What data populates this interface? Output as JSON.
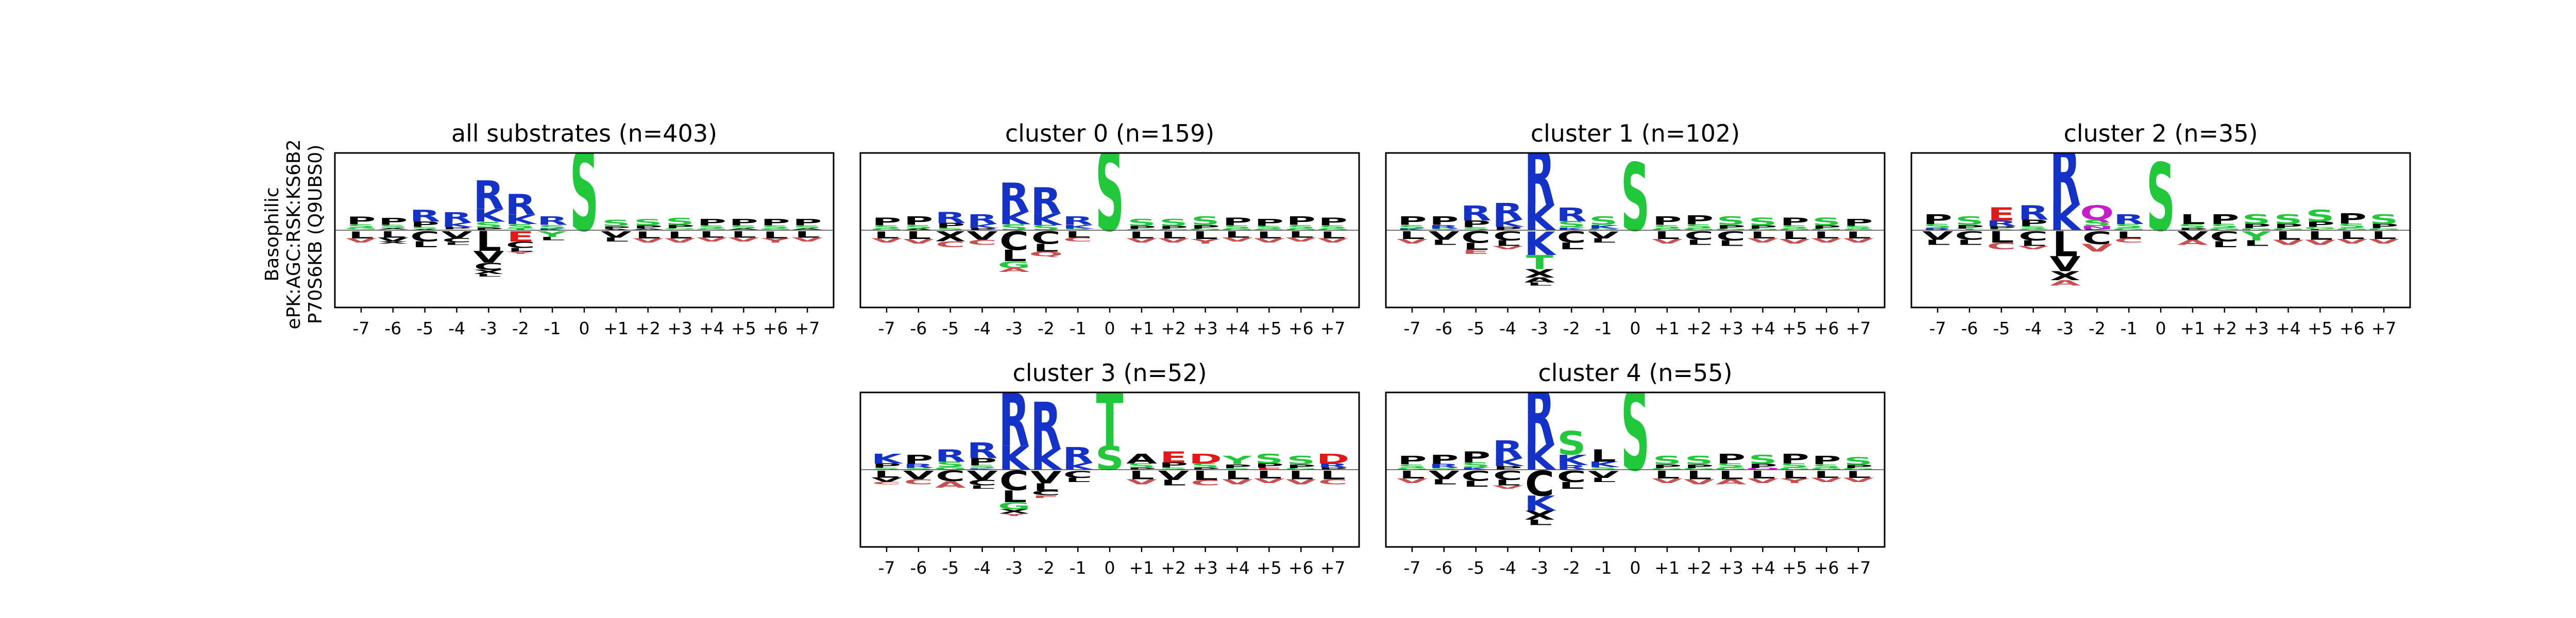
{
  "figure": {
    "ylabel_lines": [
      "Basophilic",
      "ePK:AGC:RSK:KS6B2",
      "P70S6KB (Q9UBS0)"
    ]
  },
  "colors": {
    "R": "#1432c8",
    "K": "#1432c8",
    "H": "#7b7bff",
    "S": "#22c83c",
    "T": "#22c83c",
    "G": "#22c83c",
    "Y": "#22c83c",
    "D": "#e01a1a",
    "E": "#e01a1a",
    "N": "#c81cc8",
    "Q": "#c81cc8",
    "P": "#000000",
    "A": "#000000",
    "V": "#000000",
    "L": "#000000",
    "I": "#000000",
    "M": "#000000",
    "F": "#000000",
    "W": "#000000",
    "C": "#000000",
    "X": "#000000",
    "neg": "#c85050"
  },
  "chart_data": [
    {
      "type": "sequence-logo",
      "title": "all substrates (n=403)",
      "positions": [
        "-7",
        "-6",
        "-5",
        "-4",
        "-3",
        "-2",
        "-1",
        "0",
        "+1",
        "+2",
        "+3",
        "+4",
        "+5",
        "+6",
        "+7"
      ],
      "above": [
        [
          "P",
          "S",
          "G",
          "A"
        ],
        [
          "P",
          "S",
          "A",
          "G"
        ],
        [
          "R",
          "P",
          "S",
          "A"
        ],
        [
          "R",
          "K",
          "P",
          "S"
        ],
        [
          "R",
          "K",
          "S",
          "P"
        ],
        [
          "R",
          "K",
          "S",
          "T"
        ],
        [
          "R",
          "S",
          "K"
        ],
        [
          "S"
        ],
        [
          "S",
          "P",
          "A"
        ],
        [
          "S",
          "P",
          "A",
          "G"
        ],
        [
          "S",
          "P",
          "G",
          "A"
        ],
        [
          "P",
          "S",
          "G",
          "A"
        ],
        [
          "P",
          "S",
          "A",
          "G"
        ],
        [
          "P",
          "S",
          "G",
          "A"
        ],
        [
          "P",
          "S",
          "A",
          "G"
        ]
      ],
      "above_h": [
        0.6,
        0.55,
        0.9,
        0.8,
        2.2,
        1.6,
        0.6,
        3.6,
        0.45,
        0.5,
        0.55,
        0.5,
        0.5,
        0.5,
        0.5
      ],
      "below": [
        [
          "L",
          "V"
        ],
        [
          "L",
          "V",
          "X"
        ],
        [
          "C",
          "L"
        ],
        [
          "V",
          "C",
          "L"
        ],
        [
          "L",
          "V",
          "C",
          "X",
          "L"
        ],
        [
          "E",
          "C",
          "L",
          "Y"
        ],
        [
          "Y",
          "L"
        ],
        [],
        [
          "V",
          "L"
        ],
        [
          "L",
          "V"
        ],
        [
          "L",
          "V"
        ],
        [
          "L",
          "V"
        ],
        [
          "L",
          "V"
        ],
        [
          "L",
          "Y"
        ],
        [
          "L",
          "V"
        ]
      ],
      "below_h": [
        0.5,
        0.55,
        0.7,
        0.6,
        2.0,
        1.0,
        0.4,
        0,
        0.45,
        0.5,
        0.5,
        0.45,
        0.45,
        0.5,
        0.45
      ]
    },
    {
      "type": "sequence-logo",
      "title": "cluster 0 (n=159)",
      "positions": [
        "-7",
        "-6",
        "-5",
        "-4",
        "-3",
        "-2",
        "-1",
        "0",
        "+1",
        "+2",
        "+3",
        "+4",
        "+5",
        "+6",
        "+7"
      ],
      "above": [
        [
          "P",
          "S",
          "G"
        ],
        [
          "P",
          "S",
          "A"
        ],
        [
          "R",
          "P",
          "S"
        ],
        [
          "R",
          "K",
          "P"
        ],
        [
          "R",
          "K",
          "S"
        ],
        [
          "R",
          "K",
          "S"
        ],
        [
          "R",
          "K",
          "S"
        ],
        [
          "S"
        ],
        [
          "S",
          "P",
          "G"
        ],
        [
          "S",
          "P",
          "G"
        ],
        [
          "S",
          "P",
          "G"
        ],
        [
          "P",
          "S",
          "G"
        ],
        [
          "P",
          "S",
          "G"
        ],
        [
          "P",
          "S",
          "G"
        ],
        [
          "P",
          "S",
          "G"
        ]
      ],
      "above_h": [
        0.55,
        0.6,
        0.8,
        0.7,
        2.1,
        1.9,
        0.6,
        3.6,
        0.5,
        0.5,
        0.6,
        0.55,
        0.5,
        0.6,
        0.55
      ],
      "below": [
        [
          "L",
          "V"
        ],
        [
          "L",
          "V"
        ],
        [
          "X",
          "C"
        ],
        [
          "V",
          "C"
        ],
        [
          "C",
          "L",
          "G",
          "A"
        ],
        [
          "C",
          "L",
          "Q"
        ],
        [
          "L",
          "C"
        ],
        [],
        [
          "L",
          "V"
        ],
        [
          "L",
          "V"
        ],
        [
          "L",
          "Y"
        ],
        [
          "L",
          "V"
        ],
        [
          "L",
          "V"
        ],
        [
          "L",
          "V"
        ],
        [
          "L",
          "V"
        ]
      ],
      "below_h": [
        0.5,
        0.55,
        0.7,
        0.6,
        1.8,
        1.1,
        0.45,
        0,
        0.5,
        0.5,
        0.55,
        0.45,
        0.5,
        0.45,
        0.5
      ]
    },
    {
      "type": "sequence-logo",
      "title": "cluster 1 (n=102)",
      "positions": [
        "-7",
        "-6",
        "-5",
        "-4",
        "-3",
        "-2",
        "-1",
        "0",
        "+1",
        "+2",
        "+3",
        "+4",
        "+5",
        "+6",
        "+7"
      ],
      "above": [
        [
          "P",
          "S",
          "K"
        ],
        [
          "P",
          "R",
          "S"
        ],
        [
          "R",
          "P",
          "S"
        ],
        [
          "R",
          "K",
          "P"
        ],
        [
          "R",
          "K"
        ],
        [
          "R",
          "S",
          "K"
        ],
        [
          "S",
          "K",
          "G"
        ],
        [
          "S"
        ],
        [
          "P",
          "S",
          "G"
        ],
        [
          "P",
          "S",
          "G"
        ],
        [
          "S",
          "P",
          "G"
        ],
        [
          "S",
          "P",
          "G"
        ],
        [
          "P",
          "S",
          "G"
        ],
        [
          "S",
          "P",
          "G"
        ],
        [
          "P",
          "S",
          "G"
        ]
      ],
      "above_h": [
        0.6,
        0.6,
        1.1,
        1.2,
        3.6,
        1.0,
        0.6,
        3.0,
        0.6,
        0.65,
        0.6,
        0.55,
        0.55,
        0.55,
        0.5
      ],
      "below": [
        [
          "L",
          "V"
        ],
        [
          "V",
          "L"
        ],
        [
          "C",
          "L",
          "E"
        ],
        [
          "C",
          "L",
          "V"
        ],
        [
          "K",
          "T",
          "X",
          "A",
          "L"
        ],
        [
          "C",
          "L"
        ],
        [
          "V",
          "L"
        ],
        [],
        [
          "L",
          "V"
        ],
        [
          "C",
          "L"
        ],
        [
          "C",
          "L"
        ],
        [
          "L",
          "V"
        ],
        [
          "L",
          "V"
        ],
        [
          "L",
          "V"
        ],
        [
          "L",
          "V"
        ]
      ],
      "below_h": [
        0.55,
        0.6,
        1.0,
        0.8,
        2.4,
        0.8,
        0.5,
        0,
        0.55,
        0.6,
        0.65,
        0.5,
        0.55,
        0.5,
        0.5
      ]
    },
    {
      "type": "sequence-logo",
      "title": "cluster 2 (n=35)",
      "positions": [
        "-7",
        "-6",
        "-5",
        "-4",
        "-3",
        "-2",
        "-1",
        "0",
        "+1",
        "+2",
        "+3",
        "+4",
        "+5",
        "+6",
        "+7"
      ],
      "above": [
        [
          "P",
          "S",
          "R"
        ],
        [
          "S",
          "P",
          "T"
        ],
        [
          "E",
          "R",
          "P",
          "S"
        ],
        [
          "R",
          "P",
          "S",
          "G"
        ],
        [
          "R",
          "K"
        ],
        [
          "Q",
          "S",
          "N",
          "K"
        ],
        [
          "R",
          "S",
          "G"
        ],
        [
          "S"
        ],
        [
          "L",
          "S",
          "P"
        ],
        [
          "P",
          "S",
          "G"
        ],
        [
          "S",
          "P",
          "G"
        ],
        [
          "S",
          "P",
          "G"
        ],
        [
          "S",
          "P",
          "G",
          "L"
        ],
        [
          "P",
          "S",
          "G"
        ],
        [
          "S",
          "P",
          "G"
        ]
      ],
      "above_h": [
        0.7,
        0.6,
        1.0,
        1.1,
        3.7,
        1.1,
        0.7,
        3.0,
        0.7,
        0.7,
        0.7,
        0.7,
        0.9,
        0.75,
        0.7
      ],
      "below": [
        [
          "V",
          "L"
        ],
        [
          "C",
          "L"
        ],
        [
          "L",
          "C"
        ],
        [
          "C",
          "L",
          "V"
        ],
        [
          "L",
          "V",
          "X",
          "A"
        ],
        [
          "C",
          "V"
        ],
        [
          "L",
          "C"
        ],
        [],
        [
          "V",
          "A"
        ],
        [
          "C",
          "L"
        ],
        [
          "Y",
          "L"
        ],
        [
          "L",
          "V"
        ],
        [
          "L",
          "V"
        ],
        [
          "L",
          "V"
        ],
        [
          "L",
          "V"
        ]
      ],
      "below_h": [
        0.6,
        0.6,
        0.8,
        0.8,
        2.4,
        0.9,
        0.5,
        0,
        0.6,
        0.7,
        0.65,
        0.6,
        0.6,
        0.55,
        0.55
      ]
    },
    {
      "type": "sequence-logo",
      "title": "cluster 3 (n=52)",
      "positions": [
        "-7",
        "-6",
        "-5",
        "-4",
        "-3",
        "-2",
        "-1",
        "0",
        "+1",
        "+2",
        "+3",
        "+4",
        "+5",
        "+6",
        "+7"
      ],
      "above": [
        [
          "K",
          "P",
          "S"
        ],
        [
          "P",
          "R",
          "S"
        ],
        [
          "R",
          "S",
          "G"
        ],
        [
          "R",
          "P",
          "S",
          "K"
        ],
        [
          "R",
          "K"
        ],
        [
          "R",
          "K"
        ],
        [
          "R",
          "K"
        ],
        [
          "T",
          "S"
        ],
        [
          "A",
          "S",
          "P"
        ],
        [
          "E",
          "P",
          "S"
        ],
        [
          "D",
          "S",
          "P"
        ],
        [
          "Y",
          "P",
          "S"
        ],
        [
          "S",
          "P",
          "E"
        ],
        [
          "S",
          "P",
          "G"
        ],
        [
          "D",
          "R",
          "P"
        ]
      ],
      "above_h": [
        0.7,
        0.65,
        0.9,
        1.2,
        3.4,
        3.0,
        1.0,
        3.4,
        0.7,
        0.8,
        0.7,
        0.6,
        0.7,
        0.6,
        0.7
      ],
      "below": [
        [
          "L",
          "V",
          "C"
        ],
        [
          "V",
          "C"
        ],
        [
          "C",
          "A"
        ],
        [
          "V",
          "C",
          "L"
        ],
        [
          "C",
          "L",
          "G",
          "X",
          "Y"
        ],
        [
          "V",
          "L",
          "C",
          "F"
        ],
        [
          "C",
          "L"
        ],
        [],
        [
          "L",
          "V"
        ],
        [
          "V",
          "L"
        ],
        [
          "L",
          "C"
        ],
        [
          "L",
          "V"
        ],
        [
          "L",
          "V"
        ],
        [
          "L",
          "V"
        ],
        [
          "L",
          "C"
        ]
      ],
      "below_h": [
        0.6,
        0.6,
        0.75,
        0.8,
        2.0,
        1.2,
        0.5,
        0,
        0.6,
        0.65,
        0.65,
        0.6,
        0.55,
        0.6,
        0.6
      ]
    },
    {
      "type": "sequence-logo",
      "title": "cluster 4 (n=55)",
      "positions": [
        "-7",
        "-6",
        "-5",
        "-4",
        "-3",
        "-2",
        "-1",
        "0",
        "+1",
        "+2",
        "+3",
        "+4",
        "+5",
        "+6",
        "+7"
      ],
      "above": [
        [
          "P",
          "S",
          "G"
        ],
        [
          "P",
          "R",
          "S"
        ],
        [
          "P",
          "S",
          "K"
        ],
        [
          "R",
          "K",
          "P"
        ],
        [
          "R",
          "K"
        ],
        [
          "S",
          "K",
          "R"
        ],
        [
          "L",
          "K",
          "S"
        ],
        [
          "S"
        ],
        [
          "S",
          "P",
          "G"
        ],
        [
          "S",
          "P",
          "G"
        ],
        [
          "P",
          "S",
          "G"
        ],
        [
          "S",
          "P",
          "Q"
        ],
        [
          "P",
          "S",
          "G"
        ],
        [
          "P",
          "S",
          "G"
        ],
        [
          "S",
          "P",
          "G"
        ]
      ],
      "above_h": [
        0.6,
        0.65,
        0.8,
        1.3,
        3.6,
        1.7,
        0.9,
        3.6,
        0.6,
        0.6,
        0.7,
        0.65,
        0.7,
        0.6,
        0.55
      ],
      "below": [
        [
          "L",
          "V"
        ],
        [
          "V",
          "L"
        ],
        [
          "C",
          "L"
        ],
        [
          "C",
          "L",
          "V"
        ],
        [
          "C",
          "K",
          "X",
          "L"
        ],
        [
          "C",
          "L"
        ],
        [
          "V",
          "L"
        ],
        [],
        [
          "L",
          "V"
        ],
        [
          "L",
          "V"
        ],
        [
          "L",
          "A"
        ],
        [
          "L",
          "V"
        ],
        [
          "L",
          "Y"
        ],
        [
          "L",
          "V"
        ],
        [
          "L",
          "V"
        ]
      ],
      "below_h": [
        0.55,
        0.6,
        0.7,
        0.8,
        2.4,
        0.8,
        0.5,
        0,
        0.55,
        0.6,
        0.6,
        0.55,
        0.55,
        0.5,
        0.5
      ]
    }
  ]
}
